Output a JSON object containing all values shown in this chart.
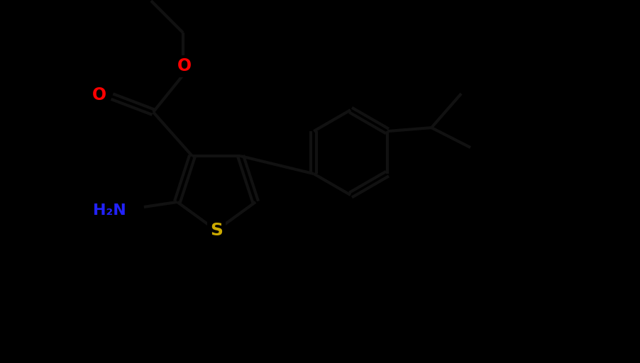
{
  "background_color": "#000000",
  "bond_color": "#111111",
  "bond_width": 3.0,
  "atom_colors": {
    "O": "#ff0000",
    "S": "#ccaa00",
    "N": "#2222ff",
    "C": "#111111",
    "H": "#111111"
  },
  "font_size": 16,
  "fig_width": 9.03,
  "fig_height": 5.12,
  "xlim": [
    0,
    9.03
  ],
  "ylim": [
    0,
    5.12
  ]
}
